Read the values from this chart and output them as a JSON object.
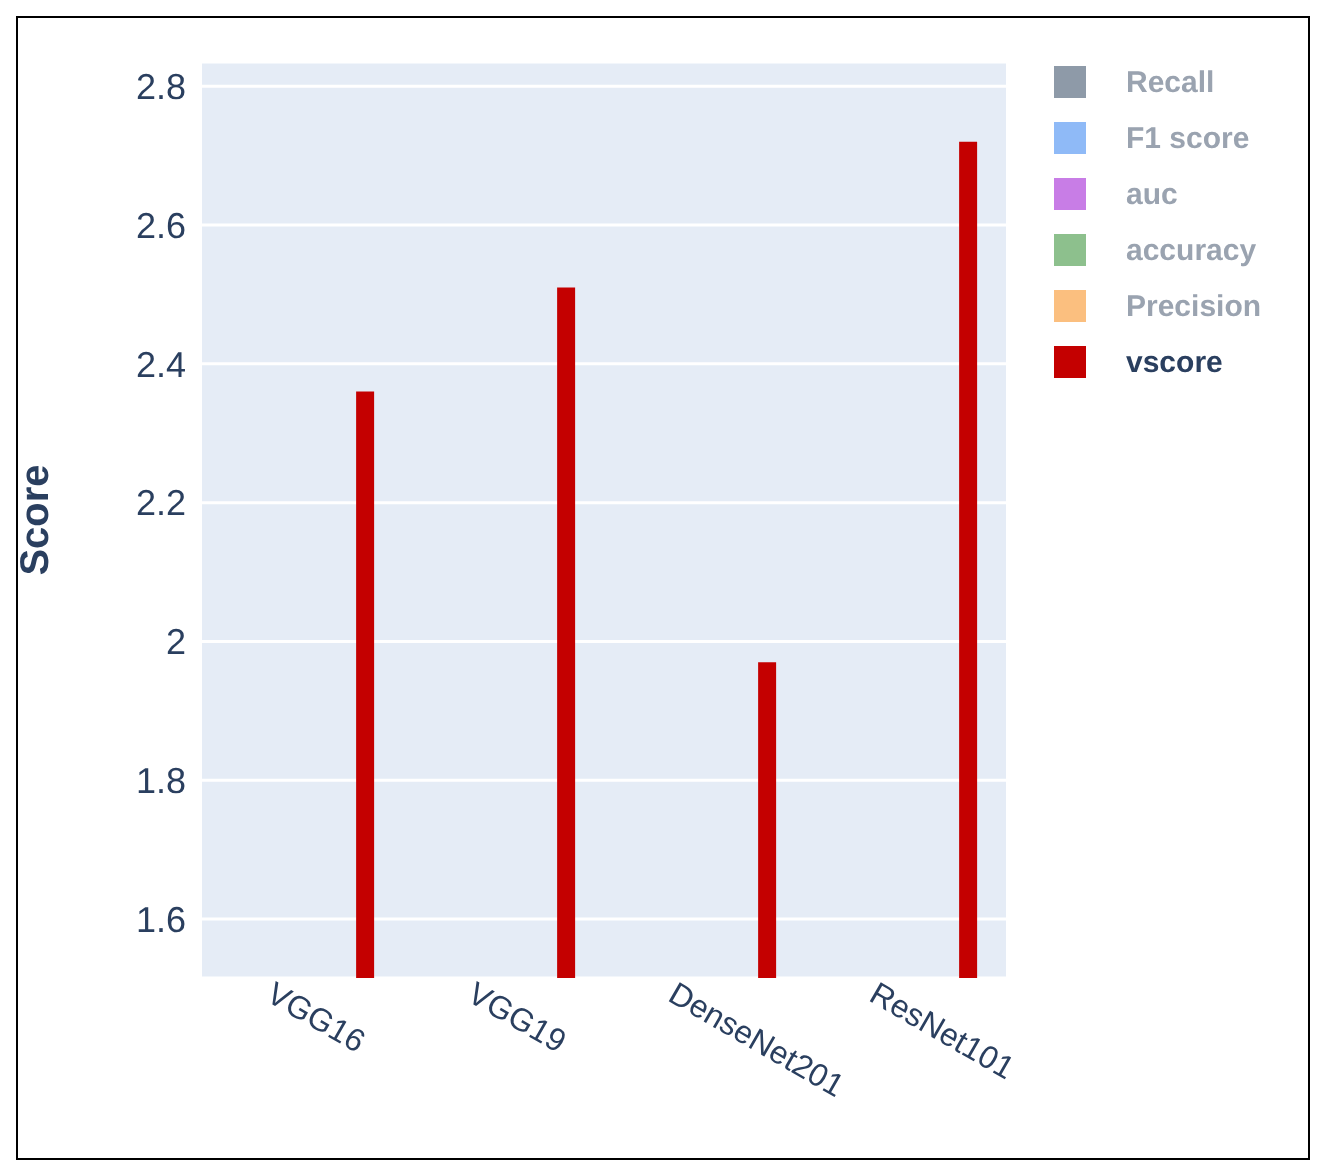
{
  "chart_data": {
    "type": "bar",
    "ylabel": "Score",
    "categories": [
      "VGG16",
      "VGG19",
      "DenseNet201",
      "ResNet101"
    ],
    "series": [
      {
        "name": "Recall",
        "color": "#8e9aa8",
        "values": [
          null,
          null,
          null,
          null
        ]
      },
      {
        "name": "F1 score",
        "color": "#8fbaf7",
        "values": [
          null,
          null,
          null,
          null
        ]
      },
      {
        "name": "auc",
        "color": "#c87de6",
        "values": [
          null,
          null,
          null,
          null
        ]
      },
      {
        "name": "accuracy",
        "color": "#8dc08d",
        "values": [
          null,
          null,
          null,
          null
        ]
      },
      {
        "name": "Precision",
        "color": "#fbbf7f",
        "values": [
          null,
          null,
          null,
          null
        ]
      },
      {
        "name": "vscore",
        "color": "#c40000",
        "values": [
          2.36,
          2.51,
          1.97,
          2.72
        ]
      }
    ],
    "ylim": [
      1.515,
      2.835
    ],
    "yticks": [
      1.6,
      1.8,
      2,
      2.2,
      2.4,
      2.6,
      2.8
    ],
    "grid": "y",
    "legend": "top right"
  }
}
